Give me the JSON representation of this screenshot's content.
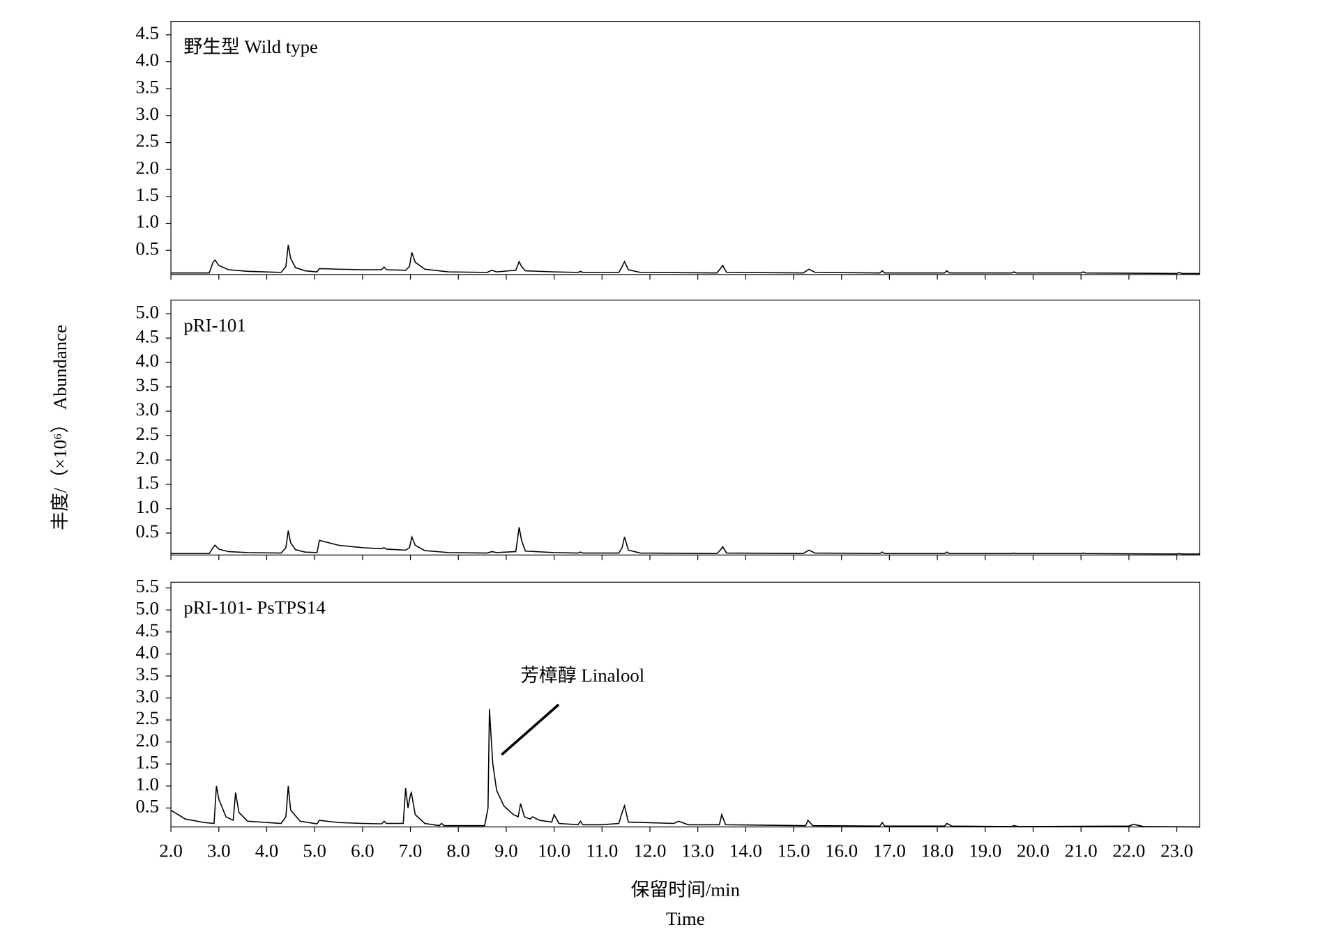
{
  "chart_data": [
    {
      "type": "line",
      "title": "野生型  Wild type",
      "color": "#000000",
      "xlim": [
        2.0,
        23.48
      ],
      "ylim": [
        0.05,
        4.75
      ],
      "yticks": [
        0.5,
        {
          "value": 1,
          "label": "1.0"
        },
        1.5,
        {
          "value": 2,
          "label": "2.0"
        },
        2.5,
        {
          "value": 3,
          "label": "3.0"
        },
        3.5,
        {
          "value": 4,
          "label": "4.0"
        },
        4.5
      ],
      "x": [
        2.0,
        2.8,
        2.88,
        2.92,
        3.0,
        3.2,
        3.6,
        4.3,
        4.4,
        4.45,
        4.5,
        4.6,
        4.8,
        5.05,
        5.1,
        5.5,
        6.0,
        6.4,
        6.45,
        6.5,
        6.9,
        6.98,
        7.03,
        7.1,
        7.3,
        7.8,
        8.6,
        8.7,
        8.8,
        9.2,
        9.27,
        9.32,
        9.4,
        10.0,
        10.5,
        10.55,
        10.6,
        11.35,
        11.42,
        11.47,
        11.55,
        11.8,
        13.4,
        13.47,
        13.52,
        13.6,
        15.2,
        15.27,
        15.32,
        15.45,
        16.8,
        16.85,
        16.9,
        18.15,
        18.2,
        18.25,
        19.55,
        19.6,
        19.65,
        21.0,
        21.05,
        21.1,
        23.0,
        23.05,
        23.1,
        23.48
      ],
      "values": [
        0.08,
        0.08,
        0.28,
        0.32,
        0.22,
        0.14,
        0.11,
        0.09,
        0.2,
        0.6,
        0.35,
        0.18,
        0.12,
        0.1,
        0.16,
        0.15,
        0.14,
        0.14,
        0.19,
        0.14,
        0.13,
        0.2,
        0.46,
        0.28,
        0.15,
        0.1,
        0.09,
        0.13,
        0.1,
        0.13,
        0.29,
        0.2,
        0.12,
        0.1,
        0.09,
        0.11,
        0.09,
        0.09,
        0.2,
        0.29,
        0.14,
        0.09,
        0.08,
        0.16,
        0.22,
        0.09,
        0.08,
        0.12,
        0.15,
        0.09,
        0.08,
        0.12,
        0.08,
        0.08,
        0.12,
        0.08,
        0.08,
        0.1,
        0.08,
        0.08,
        0.1,
        0.08,
        0.07,
        0.09,
        0.07,
        0.07
      ]
    },
    {
      "type": "line",
      "title": "pRI-101",
      "color": "#000000",
      "ylabel": "丰度/（×10⁶）   Abundance",
      "xlim": [
        2.0,
        23.48
      ],
      "ylim": [
        0.05,
        5.28
      ],
      "yticks": [
        0.5,
        {
          "value": 1,
          "label": "1.0"
        },
        1.5,
        {
          "value": 2,
          "label": "2.0"
        },
        2.5,
        {
          "value": 3,
          "label": "3.0"
        },
        3.5,
        {
          "value": 4,
          "label": "4.0"
        },
        4.5,
        {
          "value": 5,
          "label": "5.0"
        }
      ],
      "x": [
        2.0,
        2.8,
        2.88,
        2.92,
        3.0,
        3.2,
        3.6,
        4.3,
        4.4,
        4.45,
        4.5,
        4.6,
        4.8,
        5.05,
        5.1,
        5.5,
        6.0,
        6.4,
        6.45,
        6.5,
        6.9,
        6.98,
        7.03,
        7.1,
        7.3,
        7.8,
        8.6,
        8.7,
        8.8,
        9.2,
        9.27,
        9.32,
        9.4,
        10.0,
        10.5,
        10.55,
        10.6,
        11.35,
        11.42,
        11.47,
        11.55,
        11.8,
        13.4,
        13.47,
        13.52,
        13.6,
        15.2,
        15.27,
        15.32,
        15.45,
        16.8,
        16.85,
        16.9,
        18.15,
        18.2,
        18.25,
        19.55,
        19.6,
        19.65,
        21.0,
        21.05,
        21.1,
        23.0,
        23.05,
        23.1,
        23.48
      ],
      "values": [
        0.08,
        0.08,
        0.2,
        0.25,
        0.17,
        0.12,
        0.1,
        0.09,
        0.2,
        0.55,
        0.3,
        0.16,
        0.11,
        0.1,
        0.35,
        0.25,
        0.2,
        0.18,
        0.2,
        0.17,
        0.15,
        0.2,
        0.42,
        0.25,
        0.14,
        0.1,
        0.09,
        0.12,
        0.1,
        0.12,
        0.62,
        0.35,
        0.13,
        0.1,
        0.09,
        0.11,
        0.09,
        0.09,
        0.2,
        0.42,
        0.15,
        0.09,
        0.08,
        0.15,
        0.22,
        0.09,
        0.08,
        0.12,
        0.15,
        0.09,
        0.08,
        0.11,
        0.08,
        0.08,
        0.11,
        0.08,
        0.08,
        0.09,
        0.08,
        0.08,
        0.09,
        0.08,
        0.07,
        0.08,
        0.07,
        0.07
      ]
    },
    {
      "type": "line",
      "title": "pRI-101- PsTPS14",
      "color": "#000000",
      "annotation": "芳樟醇 Linalool",
      "xlabel": [
        "保留时间/min",
        "Time"
      ],
      "xlim": [
        2.0,
        23.48
      ],
      "ylim": [
        0.07,
        5.63
      ],
      "yticks": [
        0.5,
        {
          "value": 1,
          "label": "1.0"
        },
        1.5,
        {
          "value": 2,
          "label": "2.0"
        },
        2.5,
        {
          "value": 3,
          "label": "3.0"
        },
        3.5,
        {
          "value": 4,
          "label": "4.0"
        },
        4.5,
        {
          "value": 5,
          "label": "5.0"
        },
        5.5
      ],
      "xticks": [
        {
          "value": 2,
          "label": "2.0"
        },
        {
          "value": 3,
          "label": "3.0"
        },
        {
          "value": 4,
          "label": "4.0"
        },
        {
          "value": 5,
          "label": "5.0"
        },
        {
          "value": 6,
          "label": "6.0"
        },
        {
          "value": 7,
          "label": "7.0"
        },
        {
          "value": 8,
          "label": "8.0"
        },
        {
          "value": 9,
          "label": "9.0"
        },
        {
          "value": 10,
          "label": "10.0"
        },
        {
          "value": 11,
          "label": "11.0"
        },
        {
          "value": 12,
          "label": "12.0"
        },
        {
          "value": 13,
          "label": "13.0"
        },
        {
          "value": 14,
          "label": "14.0"
        },
        {
          "value": 15,
          "label": "15.0"
        },
        {
          "value": 16,
          "label": "16.0"
        },
        {
          "value": 17,
          "label": "17.0"
        },
        {
          "value": 18,
          "label": "18.0"
        },
        {
          "value": 19,
          "label": "19.0"
        },
        {
          "value": 20,
          "label": "20.0"
        },
        {
          "value": 21,
          "label": "21.0"
        },
        {
          "value": 22,
          "label": "22.0"
        },
        {
          "value": 23,
          "label": "23.0"
        }
      ],
      "x": [
        2.0,
        2.3,
        2.7,
        2.9,
        2.95,
        3.0,
        3.15,
        3.3,
        3.35,
        3.42,
        3.6,
        4.3,
        4.4,
        4.45,
        4.5,
        4.7,
        5.05,
        5.1,
        5.5,
        6.0,
        6.4,
        6.45,
        6.5,
        6.85,
        6.9,
        6.95,
        7.0,
        7.02,
        7.1,
        7.3,
        7.6,
        7.65,
        7.7,
        8.55,
        8.62,
        8.65,
        8.68,
        8.72,
        8.8,
        8.95,
        9.15,
        9.25,
        9.3,
        9.38,
        9.5,
        9.55,
        9.7,
        9.95,
        10.0,
        10.1,
        10.5,
        10.55,
        10.6,
        11.0,
        11.35,
        11.42,
        11.47,
        11.55,
        12.5,
        12.6,
        12.8,
        13.45,
        13.5,
        13.58,
        15.25,
        15.3,
        15.4,
        16.8,
        16.85,
        16.9,
        18.15,
        18.2,
        18.3,
        19.55,
        19.6,
        19.7,
        22.0,
        22.1,
        22.3,
        23.48
      ],
      "values": [
        0.45,
        0.25,
        0.17,
        0.15,
        1.0,
        0.7,
        0.3,
        0.22,
        0.85,
        0.4,
        0.2,
        0.15,
        0.3,
        1.0,
        0.45,
        0.2,
        0.14,
        0.22,
        0.17,
        0.15,
        0.14,
        0.2,
        0.15,
        0.15,
        0.95,
        0.5,
        0.8,
        0.85,
        0.35,
        0.15,
        0.1,
        0.15,
        0.1,
        0.1,
        0.5,
        2.75,
        2.2,
        1.5,
        0.9,
        0.55,
        0.35,
        0.3,
        0.6,
        0.3,
        0.25,
        0.3,
        0.22,
        0.18,
        0.35,
        0.15,
        0.12,
        0.2,
        0.12,
        0.12,
        0.15,
        0.4,
        0.55,
        0.18,
        0.15,
        0.2,
        0.12,
        0.12,
        0.35,
        0.12,
        0.1,
        0.22,
        0.1,
        0.09,
        0.17,
        0.09,
        0.09,
        0.15,
        0.09,
        0.08,
        0.1,
        0.08,
        0.09,
        0.13,
        0.08,
        0.07
      ]
    }
  ]
}
